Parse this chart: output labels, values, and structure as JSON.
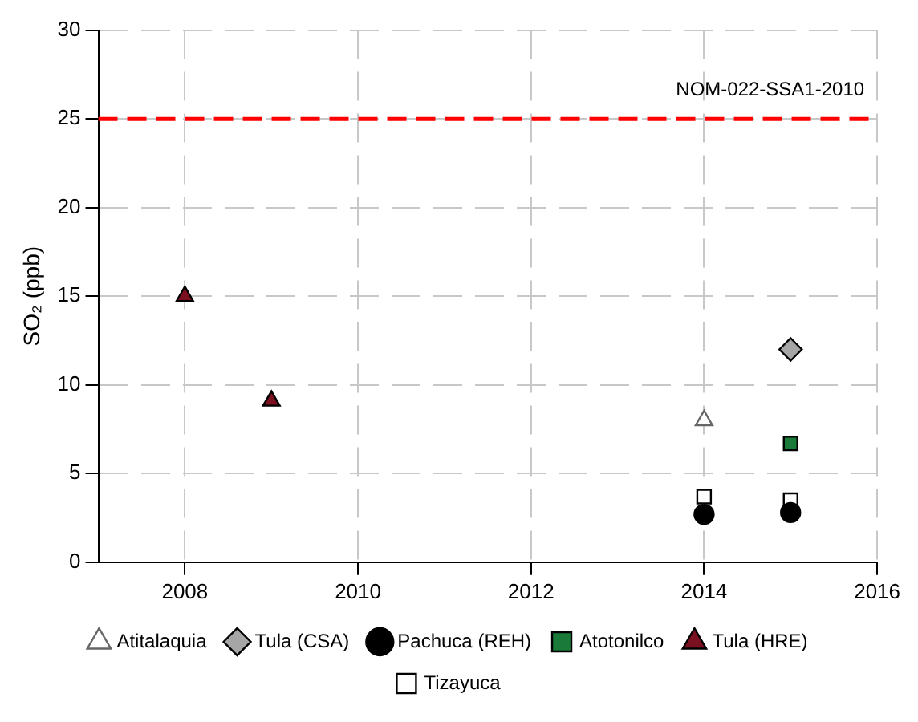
{
  "chart_data": {
    "type": "scatter",
    "ylabel": "SO₂ (ppb)",
    "xlim": [
      2007,
      2016
    ],
    "xticks": [
      2008,
      2010,
      2012,
      2014,
      2016
    ],
    "ylim": [
      0,
      30
    ],
    "yticks": [
      0,
      5,
      10,
      15,
      20,
      25,
      30
    ],
    "grid": true,
    "legend": "bottom",
    "ref_lines": [
      {
        "axis": "y",
        "value": 25,
        "label": "NOM-022-SSA1-2010",
        "color": "#ff0000",
        "line_style": "dashed"
      }
    ],
    "series": [
      {
        "name": "Atitalaquia",
        "color": "#ffffff",
        "marker": "triangle",
        "x": [
          2014
        ],
        "values": [
          8.0
        ]
      },
      {
        "name": "Tula (CSA)",
        "color": "#a6a6a6",
        "marker": "diamond",
        "x": [
          2015
        ],
        "values": [
          12.0
        ]
      },
      {
        "name": "Pachuca (REH)",
        "color": "#000000",
        "marker": "circle",
        "x": [
          2014,
          2015
        ],
        "values": [
          2.7,
          2.8
        ]
      },
      {
        "name": "Atotonilco",
        "color": "#1a7a3a",
        "marker": "square",
        "x": [
          2015
        ],
        "values": [
          6.7
        ]
      },
      {
        "name": "Tula (HRE)",
        "color": "#7a1020",
        "marker": "triangle",
        "x": [
          2008,
          2009
        ],
        "values": [
          15,
          9.1
        ]
      },
      {
        "name": "Tizayuca",
        "color": "#ffffff",
        "marker": "square",
        "x": [
          2014,
          2015
        ],
        "values": [
          3.7,
          3.5
        ]
      }
    ]
  }
}
